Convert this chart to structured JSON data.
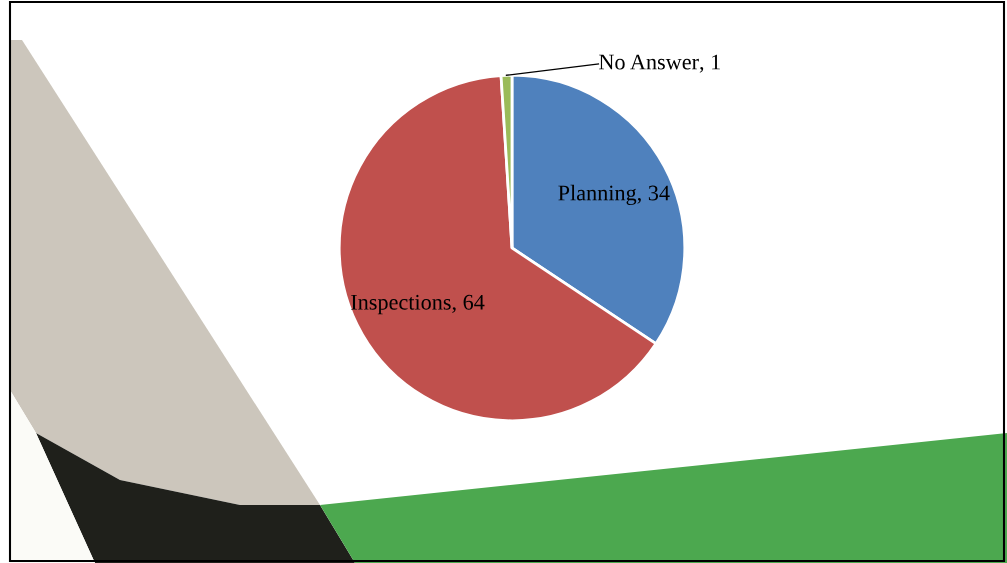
{
  "chart_data": {
    "type": "pie",
    "categories": [
      "Planning",
      "Inspections",
      "No Answer"
    ],
    "values": [
      34,
      64,
      1
    ],
    "colors": [
      "#4f81bd",
      "#c0504d",
      "#9bbb59"
    ],
    "value_labels": [
      ", 34",
      ", 64",
      ", 1"
    ],
    "legend": false
  }
}
